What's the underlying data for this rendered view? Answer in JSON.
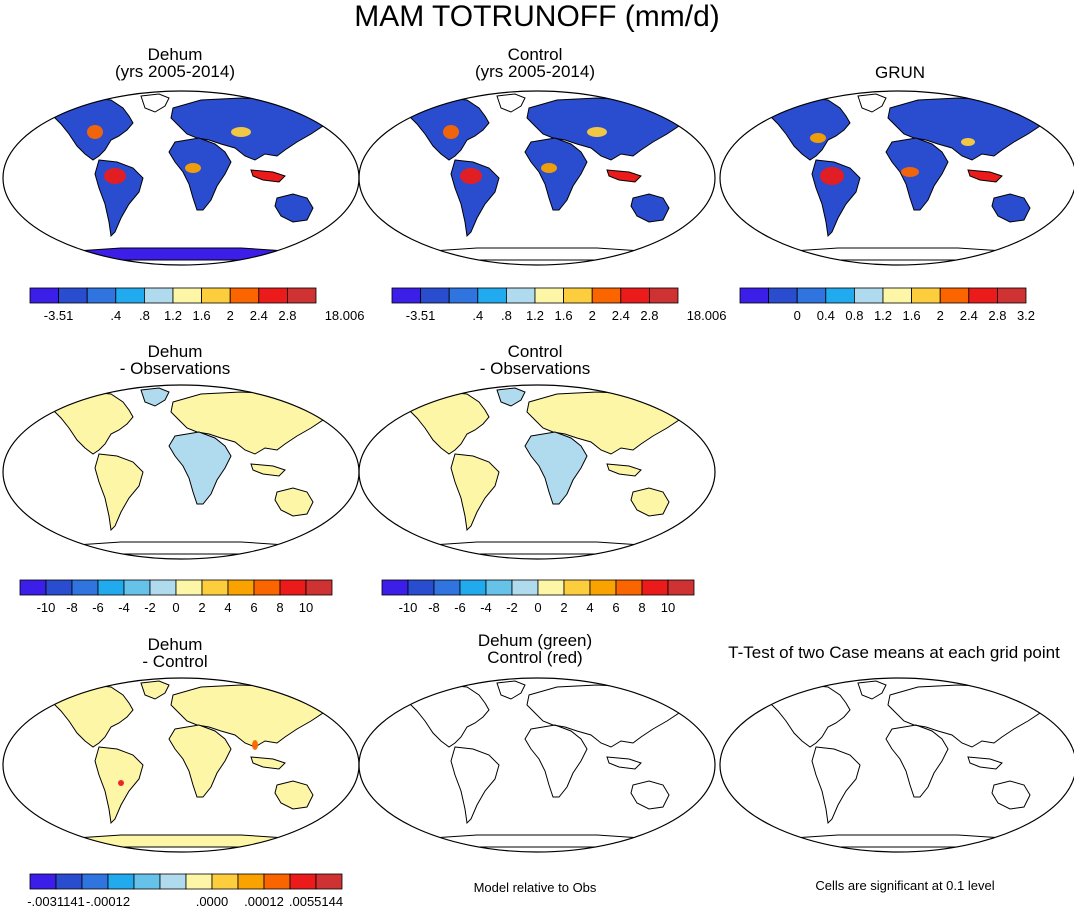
{
  "figure": {
    "title": "MAM TOTRUNOFF (mm/d)",
    "note_left": "Model relative to Obs",
    "note_right": "Cells are significant at 0.1 level"
  },
  "panels": [
    {
      "id": "dehum",
      "title": [
        "Dehum",
        "(yrs 2005-2014)"
      ]
    },
    {
      "id": "control",
      "title": [
        "Control",
        "(yrs 2005-2014)"
      ]
    },
    {
      "id": "grun",
      "title": [
        "GRUN"
      ]
    },
    {
      "id": "dehum-obs",
      "title": [
        "Dehum",
        "- Observations"
      ]
    },
    {
      "id": "control-obs",
      "title": [
        "Control",
        "- Observations"
      ]
    },
    {
      "id": "dehum-control",
      "title": [
        "Dehum",
        "- Control"
      ]
    },
    {
      "id": "green-red",
      "title": [
        "Dehum (green)",
        "Control (red)"
      ]
    },
    {
      "id": "ttest",
      "title": [
        "T-Test of two Case means at each grid point"
      ]
    }
  ],
  "colors": {
    "ramp11": [
      "#3b1fe8",
      "#2a4ccf",
      "#2f74df",
      "#22aaee",
      "#67c2ea",
      "#b0daee",
      "#fdf6a6",
      "#fccd3c",
      "#f9a200",
      "#fb6500",
      "#ec1b1b",
      "#cf3232"
    ],
    "ramp10": [
      "#3b1fe8",
      "#2a4ccf",
      "#2f74df",
      "#22aaee",
      "#b0daee",
      "#fdf6a6",
      "#fccd3c",
      "#fb6500",
      "#ec1b1b",
      "#cf3232"
    ],
    "ocean": "#ffffff",
    "land_outline": "#000000"
  },
  "legends": {
    "abs": {
      "labels": [
        "-3.51",
        "",
        ".4",
        ".8",
        "1.2",
        "1.6",
        "2",
        "2.4",
        "2.8",
        "",
        "18.006"
      ]
    },
    "grun": {
      "labels": [
        "",
        "0",
        "0.4",
        "0.8",
        "1.2",
        "1.6",
        "2",
        "2.4",
        "2.8",
        "3.2",
        ""
      ]
    },
    "diff": {
      "labels": [
        "-10",
        "-8",
        "-6",
        "-4",
        "-2",
        "0",
        "2",
        "4",
        "6",
        "8",
        "10"
      ]
    },
    "case": {
      "labels": [
        "-.0031141",
        "",
        "-.00012",
        "",
        "",
        "",
        ".0000",
        "",
        ".00012",
        "",
        ".0055144"
      ]
    }
  }
}
